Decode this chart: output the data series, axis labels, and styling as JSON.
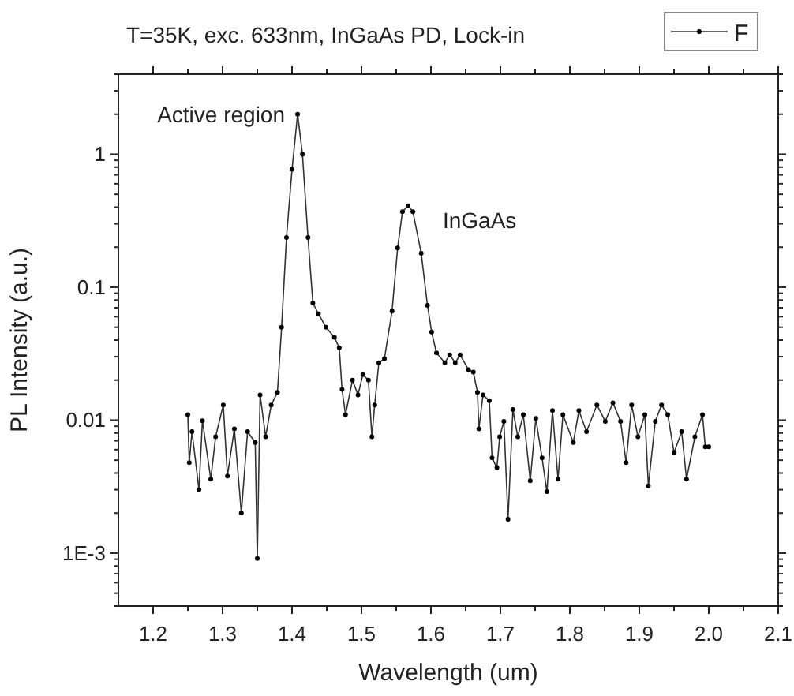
{
  "chart_data": {
    "type": "line",
    "title": "T=35K, exc. 633nm, InGaAs PD, Lock-in",
    "xlabel": "Wavelength (um)",
    "ylabel": "PL Intensity (a.u.)",
    "annotations": [
      {
        "text": "Active region",
        "x": 1.408,
        "y": 2.0
      },
      {
        "text": "InGaAs",
        "x": 1.567,
        "y": 0.41
      }
    ],
    "log": "y",
    "xlim": [
      1.15,
      2.1
    ],
    "ylim": [
      0.0004,
      4
    ],
    "xticks": [
      1.2,
      1.3,
      1.4,
      1.5,
      1.6,
      1.7,
      1.8,
      1.9,
      {
        "value": 2,
        "label": "2.0"
      },
      2.1
    ],
    "yticks": [
      {
        "value": 0.001,
        "label": "1E-3"
      },
      0.01,
      0.1,
      1
    ],
    "grid": false,
    "legend": "top right",
    "marker": "circle",
    "line_style": "solid",
    "series": [
      {
        "name": "F",
        "color": "#333333",
        "x": [
          1.25,
          1.252,
          1.256,
          1.266,
          1.271,
          1.283,
          1.29,
          1.301,
          1.307,
          1.317,
          1.327,
          1.336,
          1.347,
          1.35,
          1.354,
          1.362,
          1.37,
          1.379,
          1.385,
          1.392,
          1.4,
          1.408,
          1.415,
          1.423,
          1.43,
          1.438,
          1.449,
          1.461,
          1.468,
          1.472,
          1.477,
          1.487,
          1.495,
          1.502,
          1.51,
          1.515,
          1.519,
          1.525,
          1.533,
          1.544,
          1.552,
          1.559,
          1.567,
          1.574,
          1.586,
          1.595,
          1.601,
          1.608,
          1.62,
          1.627,
          1.635,
          1.642,
          1.654,
          1.661,
          1.667,
          1.669,
          1.675,
          1.684,
          1.688,
          1.695,
          1.699,
          1.705,
          1.711,
          1.718,
          1.725,
          1.733,
          1.743,
          1.751,
          1.76,
          1.767,
          1.775,
          1.783,
          1.79,
          1.805,
          1.813,
          1.824,
          1.839,
          1.851,
          1.862,
          1.873,
          1.881,
          1.889,
          1.898,
          1.908,
          1.913,
          1.923,
          1.932,
          1.941,
          1.95,
          1.961,
          1.968,
          1.98,
          1.991,
          1.995,
          2.0
        ],
        "values": [
          0.011,
          0.0048,
          0.0082,
          0.003,
          0.0099,
          0.0036,
          0.0075,
          0.013,
          0.0038,
          0.0086,
          0.002,
          0.0082,
          0.0068,
          0.00091,
          0.0155,
          0.0075,
          0.013,
          0.0162,
          0.05,
          0.236,
          0.77,
          2.0,
          1.0,
          0.236,
          0.076,
          0.063,
          0.05,
          0.042,
          0.035,
          0.017,
          0.011,
          0.02,
          0.0155,
          0.022,
          0.02,
          0.0075,
          0.013,
          0.027,
          0.029,
          0.066,
          0.197,
          0.37,
          0.41,
          0.37,
          0.18,
          0.073,
          0.046,
          0.032,
          0.027,
          0.031,
          0.027,
          0.031,
          0.024,
          0.023,
          0.0162,
          0.0086,
          0.0155,
          0.014,
          0.0052,
          0.0044,
          0.0075,
          0.0098,
          0.0018,
          0.012,
          0.0075,
          0.011,
          0.0035,
          0.0103,
          0.0052,
          0.0029,
          0.0118,
          0.0036,
          0.011,
          0.0068,
          0.0118,
          0.0082,
          0.013,
          0.0098,
          0.0135,
          0.0098,
          0.0048,
          0.013,
          0.0075,
          0.011,
          0.0032,
          0.0098,
          0.013,
          0.011,
          0.0057,
          0.0082,
          0.0036,
          0.0075,
          0.011,
          0.0063,
          0.0063
        ]
      }
    ]
  }
}
